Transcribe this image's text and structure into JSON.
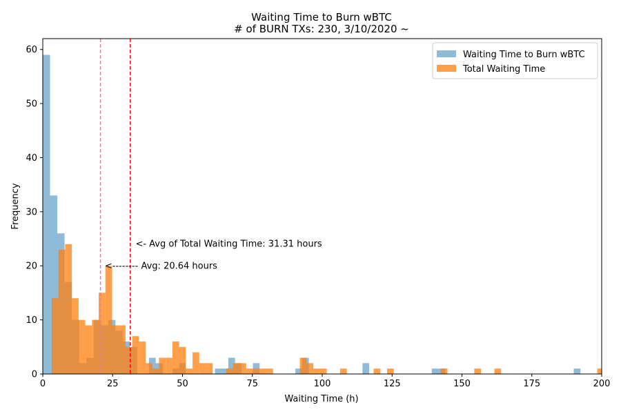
{
  "chart_data": {
    "type": "bar",
    "title": "Waiting Time to Burn wBTC",
    "subtitle": "# of BURN TXs: 230, 3/10/2020 ~",
    "xlabel": "Waiting Time (h)",
    "ylabel": "Frequency",
    "xlim": [
      0,
      200
    ],
    "ylim": [
      0,
      62
    ],
    "xticks": [
      "0",
      "25",
      "50",
      "75",
      "100",
      "125",
      "150",
      "175",
      "200"
    ],
    "yticks": [
      "0",
      "10",
      "20",
      "30",
      "40",
      "50",
      "60"
    ],
    "grid": false,
    "legend_position": "top-right",
    "series": [
      {
        "name": "Waiting Time to Burn wBTC",
        "color": "#1f77b4",
        "opacity": 0.5,
        "bins": [
          [
            0,
            2.6,
            59
          ],
          [
            2.6,
            5.2,
            33
          ],
          [
            5.2,
            7.8,
            26
          ],
          [
            7.8,
            10.4,
            17
          ],
          [
            10.4,
            13,
            10
          ],
          [
            13,
            15.6,
            2
          ],
          [
            15.6,
            18.2,
            3
          ],
          [
            18.2,
            20.8,
            10
          ],
          [
            20.8,
            23.4,
            9
          ],
          [
            23.4,
            26,
            10
          ],
          [
            26,
            28.6,
            8
          ],
          [
            28.6,
            31.2,
            6
          ],
          [
            31.2,
            33.8,
            5
          ],
          [
            38,
            40.4,
            3
          ],
          [
            40.4,
            43,
            2
          ],
          [
            46.4,
            48.8,
            1
          ],
          [
            48.8,
            51.2,
            2
          ],
          [
            61.6,
            64,
            1
          ],
          [
            64,
            66.4,
            1
          ],
          [
            66.4,
            68.8,
            3
          ],
          [
            68.8,
            71.2,
            2
          ],
          [
            75.2,
            77.6,
            2
          ],
          [
            90.4,
            92.8,
            1
          ],
          [
            92.8,
            95.2,
            3
          ],
          [
            114.4,
            116.8,
            2
          ],
          [
            139.2,
            141.6,
            1
          ],
          [
            141.6,
            144,
            1
          ],
          [
            190,
            192.4,
            1
          ]
        ]
      },
      {
        "name": "Total Waiting Time",
        "color": "#ff7f0e",
        "opacity": 0.75,
        "bins": [
          [
            3.2,
            5.6,
            14
          ],
          [
            5.6,
            8,
            23
          ],
          [
            8,
            10.4,
            24
          ],
          [
            10.4,
            12.8,
            14
          ],
          [
            12.8,
            15.2,
            10
          ],
          [
            15.2,
            17.6,
            9
          ],
          [
            17.6,
            20,
            10
          ],
          [
            20,
            22.4,
            15
          ],
          [
            22.4,
            24.8,
            20
          ],
          [
            24.8,
            27.2,
            9
          ],
          [
            27.2,
            29.6,
            9
          ],
          [
            29.6,
            32,
            5
          ],
          [
            32,
            34.4,
            7
          ],
          [
            34.4,
            36.8,
            6
          ],
          [
            36.8,
            39.2,
            2
          ],
          [
            39.2,
            41.6,
            1
          ],
          [
            41.6,
            44,
            3
          ],
          [
            44,
            46.4,
            3
          ],
          [
            46.4,
            48.8,
            6
          ],
          [
            48.8,
            51.2,
            5
          ],
          [
            51.2,
            53.6,
            1
          ],
          [
            53.6,
            56,
            4
          ],
          [
            56,
            58.4,
            2
          ],
          [
            58.4,
            60.8,
            2
          ],
          [
            65.6,
            68,
            1
          ],
          [
            68,
            70.4,
            2
          ],
          [
            70.4,
            72.8,
            2
          ],
          [
            72.8,
            75.2,
            1
          ],
          [
            75.2,
            77.6,
            1
          ],
          [
            77.6,
            80,
            1
          ],
          [
            80,
            82.4,
            1
          ],
          [
            92,
            94.4,
            3
          ],
          [
            94.4,
            96.8,
            2
          ],
          [
            96.8,
            99.2,
            1
          ],
          [
            99.2,
            101.6,
            1
          ],
          [
            106.4,
            108.8,
            1
          ],
          [
            118.4,
            120.8,
            1
          ],
          [
            123.2,
            125.6,
            1
          ],
          [
            142.4,
            144.8,
            1
          ],
          [
            154.4,
            156.8,
            1
          ],
          [
            161.6,
            164,
            1
          ],
          [
            198.4,
            200.8,
            1
          ]
        ]
      }
    ],
    "vlines": [
      {
        "x": 20.64,
        "color": "#e377c2"
      },
      {
        "x": 31.31,
        "color": "#ff0000"
      }
    ],
    "annotations": [
      {
        "text": "<- Avg of Total Waiting Time: 31.31 hours",
        "x": 33.2,
        "y": 24.2
      },
      {
        "text": "<-------- Avg: 20.64 hours",
        "x": 22.2,
        "y": 20.1
      }
    ]
  }
}
